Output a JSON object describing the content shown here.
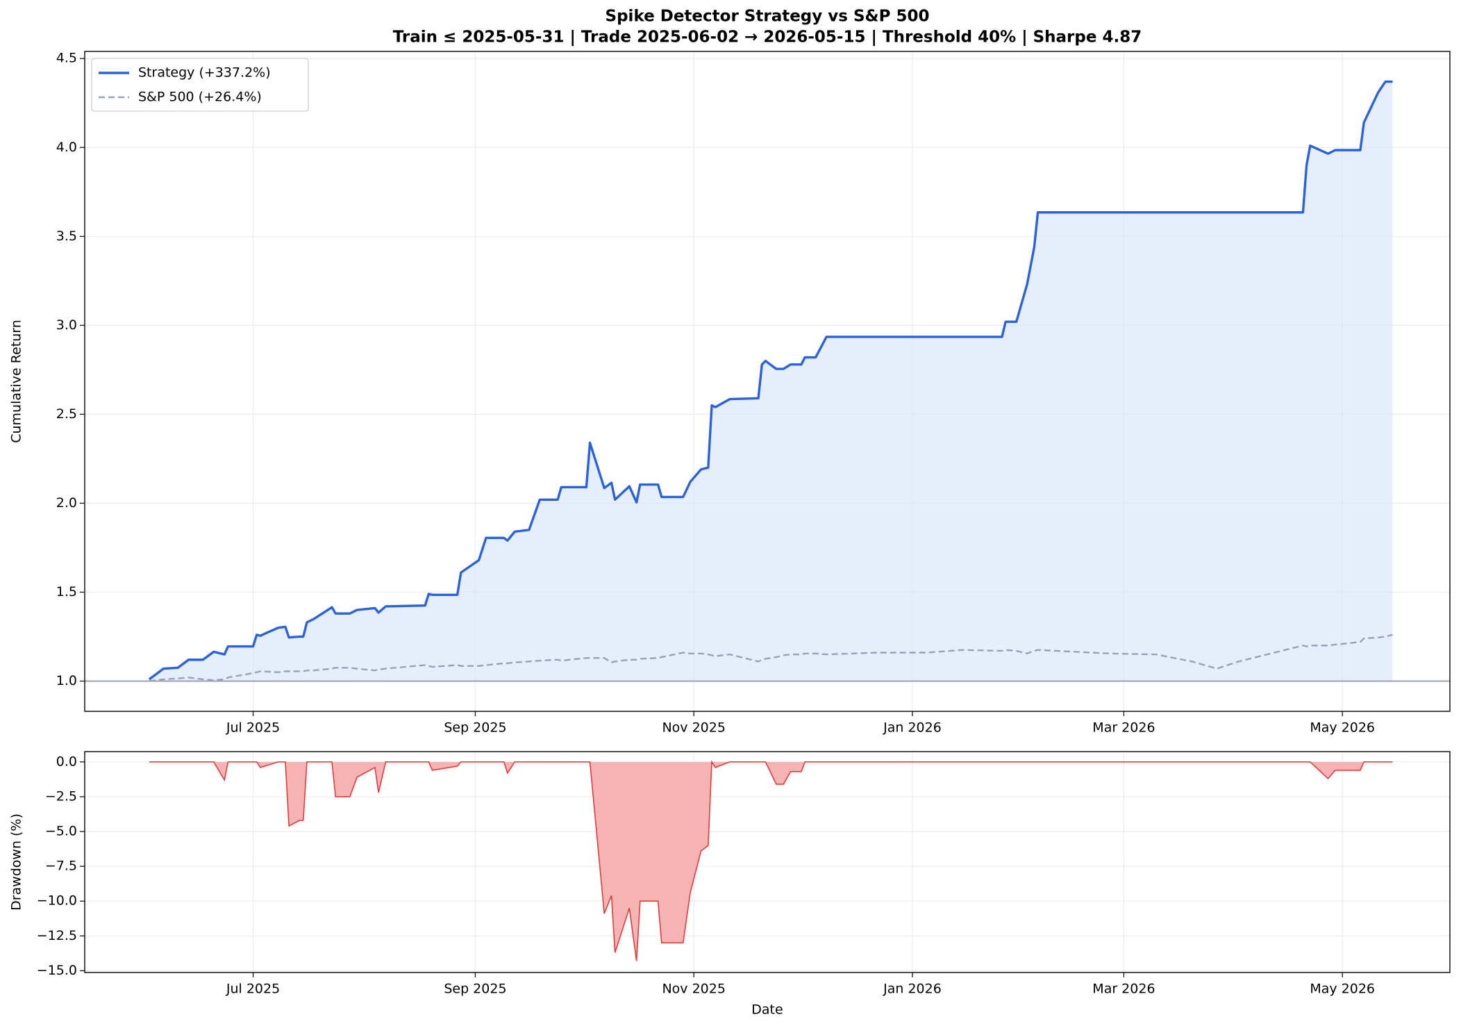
{
  "chart_data": [
    {
      "type": "line",
      "title": "Spike Detector Strategy vs S&P 500",
      "subtitle": "Train ≤ 2025-05-31 | Trade 2025-06-02 → 2026-05-15 | Threshold 40% | Sharpe 4.87",
      "ylabel": "Cumulative Return",
      "grid": true,
      "legend": "upper left",
      "hline": 1,
      "fill_color": "#d6e2f8",
      "xlim": [
        "2025-05-15",
        "2026-05-31"
      ],
      "xticks": [
        {
          "value": "2025-07-01",
          "label": "Jul 2025"
        },
        {
          "value": "2025-09-01",
          "label": "Sep 2025"
        },
        {
          "value": "2025-11-01",
          "label": "Nov 2025"
        },
        {
          "value": "2026-01-01",
          "label": "Jan 2026"
        },
        {
          "value": "2026-03-01",
          "label": "Mar 2026"
        },
        {
          "value": "2026-05-01",
          "label": "May 2026"
        }
      ],
      "ylim": [
        0.83,
        4.54
      ],
      "yticks": [
        {
          "value": 1,
          "label": "1.0"
        },
        1.5,
        {
          "value": 2,
          "label": "2.0"
        },
        2.5,
        {
          "value": 3,
          "label": "3.0"
        },
        3.5,
        {
          "value": 4,
          "label": "4.0"
        },
        4.5
      ],
      "x": [
        "2025-06-02",
        "2025-06-04",
        "2025-06-06",
        "2025-06-10",
        "2025-06-13",
        "2025-06-17",
        "2025-06-20",
        "2025-06-23",
        "2025-06-24",
        "2025-07-01",
        "2025-07-02",
        "2025-07-03",
        "2025-07-08",
        "2025-07-10",
        "2025-07-11",
        "2025-07-14",
        "2025-07-15",
        "2025-07-16",
        "2025-07-18",
        "2025-07-23",
        "2025-07-24",
        "2025-07-28",
        "2025-07-30",
        "2025-08-04",
        "2025-08-05",
        "2025-08-07",
        "2025-08-18",
        "2025-08-19",
        "2025-08-20",
        "2025-08-27",
        "2025-08-28",
        "2025-09-02",
        "2025-09-04",
        "2025-09-09",
        "2025-09-10",
        "2025-09-12",
        "2025-09-16",
        "2025-09-19",
        "2025-09-24",
        "2025-09-25",
        "2025-10-02",
        "2025-10-03",
        "2025-10-07",
        "2025-10-09",
        "2025-10-10",
        "2025-10-14",
        "2025-10-16",
        "2025-10-17",
        "2025-10-22",
        "2025-10-23",
        "2025-10-29",
        "2025-10-31",
        "2025-11-03",
        "2025-11-05",
        "2025-11-06",
        "2025-11-07",
        "2025-11-11",
        "2025-11-19",
        "2025-11-20",
        "2025-11-21",
        "2025-11-24",
        "2025-11-26",
        "2025-11-28",
        "2025-12-01",
        "2025-12-02",
        "2025-12-05",
        "2025-12-08",
        "2025-12-22",
        "2026-01-05",
        "2026-01-15",
        "2026-01-26",
        "2026-01-27",
        "2026-01-30",
        "2026-02-02",
        "2026-02-04",
        "2026-02-05",
        "2026-02-25",
        "2026-03-10",
        "2026-03-20",
        "2026-03-27",
        "2026-04-02",
        "2026-04-10",
        "2026-04-20",
        "2026-04-21",
        "2026-04-22",
        "2026-04-27",
        "2026-04-29",
        "2026-05-06",
        "2026-05-07",
        "2026-05-11",
        "2026-05-13",
        "2026-05-15"
      ],
      "series": [
        {
          "name": "Strategy (+337.2%)",
          "color": "#2962db",
          "fill": true,
          "values": [
            1.01,
            1.04,
            1.07,
            1.075,
            1.12,
            1.12,
            1.165,
            1.15,
            1.195,
            1.195,
            1.26,
            1.255,
            1.3,
            1.305,
            1.245,
            1.25,
            1.25,
            1.33,
            1.35,
            1.415,
            1.38,
            1.38,
            1.4,
            1.41,
            1.385,
            1.42,
            1.425,
            1.49,
            1.485,
            1.485,
            1.61,
            1.68,
            1.805,
            1.805,
            1.79,
            1.84,
            1.85,
            2.02,
            2.02,
            2.09,
            2.09,
            2.34,
            2.085,
            2.115,
            2.02,
            2.095,
            2.005,
            2.105,
            2.105,
            2.035,
            2.035,
            2.12,
            2.19,
            2.2,
            2.55,
            2.54,
            2.585,
            2.59,
            2.78,
            2.8,
            2.755,
            2.755,
            2.78,
            2.78,
            2.82,
            2.82,
            2.935,
            2.935,
            2.935,
            2.935,
            2.935,
            3.02,
            3.02,
            3.23,
            3.44,
            3.635,
            3.635,
            3.635,
            3.635,
            3.635,
            3.635,
            3.635,
            3.635,
            3.9,
            4.01,
            3.965,
            3.985,
            3.985,
            4.14,
            4.31,
            4.37,
            4.37
          ]
        },
        {
          "name": "S&P 500 (+26.4%)",
          "color": "#9aa0b8",
          "dashed": true,
          "values": [
            1.0,
            1.005,
            1.01,
            1.015,
            1.02,
            1.01,
            1.005,
            1.01,
            1.02,
            1.045,
            1.05,
            1.055,
            1.05,
            1.055,
            1.055,
            1.055,
            1.055,
            1.06,
            1.06,
            1.07,
            1.075,
            1.075,
            1.07,
            1.06,
            1.065,
            1.07,
            1.09,
            1.085,
            1.08,
            1.09,
            1.085,
            1.085,
            1.09,
            1.1,
            1.1,
            1.105,
            1.11,
            1.115,
            1.12,
            1.115,
            1.13,
            1.13,
            1.13,
            1.105,
            1.11,
            1.12,
            1.12,
            1.125,
            1.13,
            1.135,
            1.16,
            1.155,
            1.155,
            1.15,
            1.145,
            1.14,
            1.15,
            1.11,
            1.12,
            1.125,
            1.135,
            1.145,
            1.15,
            1.15,
            1.155,
            1.155,
            1.15,
            1.16,
            1.16,
            1.175,
            1.17,
            1.175,
            1.17,
            1.155,
            1.17,
            1.175,
            1.155,
            1.15,
            1.11,
            1.07,
            1.11,
            1.15,
            1.2,
            1.195,
            1.2,
            1.2,
            1.205,
            1.22,
            1.24,
            1.245,
            1.25,
            1.26
          ]
        }
      ]
    },
    {
      "type": "area",
      "ylabel": "Drawdown (%)",
      "xlabel": "Date",
      "grid": true,
      "xlim": [
        "2025-05-15",
        "2026-05-31"
      ],
      "xticks": [
        {
          "value": "2025-07-01",
          "label": "Jul 2025"
        },
        {
          "value": "2025-09-01",
          "label": "Sep 2025"
        },
        {
          "value": "2025-11-01",
          "label": "Nov 2025"
        },
        {
          "value": "2026-01-01",
          "label": "Jan 2026"
        },
        {
          "value": "2026-03-01",
          "label": "Mar 2026"
        },
        {
          "value": "2026-05-01",
          "label": "May 2026"
        }
      ],
      "ylim": [
        -15.13,
        0.74
      ],
      "yticks": [
        {
          "value": 0,
          "label": "0.0"
        },
        {
          "value": -2.5,
          "label": "−2.5"
        },
        {
          "value": -5,
          "label": "−5.0"
        },
        {
          "value": -7.5,
          "label": "−7.5"
        },
        {
          "value": -10,
          "label": "−10.0"
        },
        {
          "value": -12.5,
          "label": "−12.5"
        },
        {
          "value": -15,
          "label": "−15.0"
        }
      ],
      "x": [
        "2025-06-02",
        "2025-06-04",
        "2025-06-06",
        "2025-06-10",
        "2025-06-13",
        "2025-06-17",
        "2025-06-20",
        "2025-06-23",
        "2025-06-24",
        "2025-07-01",
        "2025-07-02",
        "2025-07-03",
        "2025-07-08",
        "2025-07-10",
        "2025-07-11",
        "2025-07-14",
        "2025-07-15",
        "2025-07-16",
        "2025-07-18",
        "2025-07-23",
        "2025-07-24",
        "2025-07-28",
        "2025-07-30",
        "2025-08-04",
        "2025-08-05",
        "2025-08-07",
        "2025-08-18",
        "2025-08-19",
        "2025-08-20",
        "2025-08-27",
        "2025-08-28",
        "2025-09-02",
        "2025-09-04",
        "2025-09-09",
        "2025-09-10",
        "2025-09-12",
        "2025-09-16",
        "2025-09-19",
        "2025-09-24",
        "2025-09-25",
        "2025-10-02",
        "2025-10-03",
        "2025-10-07",
        "2025-10-09",
        "2025-10-10",
        "2025-10-14",
        "2025-10-16",
        "2025-10-17",
        "2025-10-22",
        "2025-10-23",
        "2025-10-29",
        "2025-10-31",
        "2025-11-03",
        "2025-11-05",
        "2025-11-06",
        "2025-11-07",
        "2025-11-11",
        "2025-11-19",
        "2025-11-20",
        "2025-11-21",
        "2025-11-24",
        "2025-11-26",
        "2025-11-28",
        "2025-12-01",
        "2025-12-02",
        "2025-12-05",
        "2025-12-08",
        "2025-12-22",
        "2026-01-05",
        "2026-01-15",
        "2026-01-26",
        "2026-01-27",
        "2026-01-30",
        "2026-02-02",
        "2026-02-04",
        "2026-02-05",
        "2026-02-25",
        "2026-03-10",
        "2026-03-20",
        "2026-03-27",
        "2026-04-02",
        "2026-04-10",
        "2026-04-20",
        "2026-04-21",
        "2026-04-22",
        "2026-04-27",
        "2026-04-29",
        "2026-05-06",
        "2026-05-07",
        "2026-05-11",
        "2026-05-13",
        "2026-05-15"
      ],
      "series": [
        {
          "name": "Drawdown",
          "color": "#e03c3c",
          "fill_color": "#f6b3b3",
          "values": [
            0,
            0,
            0,
            0,
            0,
            0,
            0,
            -1.3,
            0,
            0,
            0,
            -0.4,
            0,
            0,
            -4.6,
            -4.2,
            -4.2,
            0,
            0,
            0,
            -2.5,
            -2.5,
            -1.1,
            -0.4,
            -2.2,
            0,
            0,
            0,
            -0.6,
            -0.3,
            0,
            0,
            0,
            0,
            -0.8,
            0,
            0,
            0,
            0,
            0,
            0,
            0,
            -10.9,
            -9.6,
            -13.7,
            -10.5,
            -14.3,
            -10.0,
            -10.0,
            -13.0,
            -13.0,
            -9.4,
            -6.4,
            -6.0,
            0,
            -0.4,
            0,
            0,
            0,
            0,
            -1.6,
            -1.6,
            -0.7,
            -0.7,
            0,
            0,
            0,
            0,
            0,
            0,
            0,
            0,
            0,
            0,
            0,
            0,
            0,
            0,
            0,
            0,
            0,
            0,
            0,
            0,
            0,
            -1.2,
            -0.6,
            -0.6,
            0,
            0,
            0,
            0
          ]
        }
      ]
    }
  ]
}
